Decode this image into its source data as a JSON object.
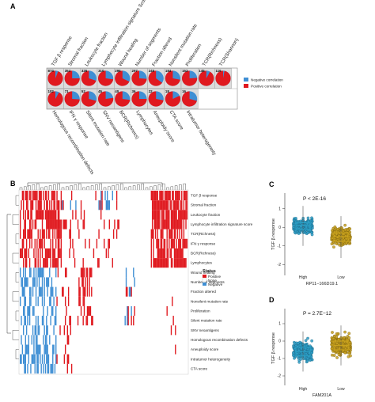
{
  "panel_labels": [
    "A",
    "B",
    "C",
    "D"
  ],
  "panelA": {
    "top_row_labels": [
      "TGF β response",
      "Stromal fraction",
      "Leukocyte fraction",
      "Lymphocyte infiltration signature Score",
      "Wound healing",
      "Number of segments",
      "Fraction altered",
      "Nonsilent mutation rate",
      "Proliferation",
      "TCR(Richness)",
      "TCR(Shannon)"
    ],
    "bottom_row_labels": [
      "Homologous recombination defects",
      "IFN γ response",
      "Silent mutation rate",
      "SNV neoantigens",
      "BCR(Richness)",
      "Lymphocytes",
      "Aneuploidy score",
      "CTA score",
      "Intratumor heterogeneity"
    ],
    "top_counts": [
      "874",
      "354",
      "326",
      "310",
      "296",
      "297",
      "245",
      "184",
      "152",
      "145",
      "116"
    ],
    "bottom_counts": [
      "102",
      "71",
      "52",
      "45",
      "40",
      "36",
      "22",
      "18",
      "16",
      "",
      ""
    ],
    "legend": {
      "negative": "Negative correlation",
      "positive": "Positive correlation"
    },
    "colors": {
      "negative": "#3f8fd4",
      "positive": "#e0191f"
    },
    "top_positive_fraction": [
      0.94,
      0.75,
      0.7,
      0.73,
      0.68,
      0.74,
      0.65,
      0.72,
      0.76,
      0.92,
      0.97
    ],
    "bottom_positive_fraction": [
      0.92,
      0.74,
      0.71,
      0.77,
      0.73,
      0.75,
      0.72,
      0.82,
      0.71
    ]
  },
  "panelB": {
    "row_labels": [
      "TGF β response",
      "Stromal fraction",
      "Leukocyte fraction",
      "Lymphocyte infiltration signature score",
      "TCR(Richness)",
      "IFN γ response",
      "BCR(Richness)",
      "Lymphocytes",
      "Wound healing",
      "Number of segments",
      "Fraction altered",
      "Nonsilent mutation rate",
      "Proliferation",
      "Silent mutation rate",
      "SNV neoantigens",
      "Homologous recombination defects",
      "Aneuploidy score",
      "Intratumor heterogeneity",
      "CTA score"
    ],
    "legend_title": "Status",
    "legend_items": [
      "Positive",
      "None",
      "Negative"
    ],
    "colors": {
      "positive": "#e0191f",
      "none": "#ffffff",
      "negative": "#3f8fd4"
    }
  },
  "panelC": {
    "p_value": "P < 2E-16",
    "ylabel": "TGF β response",
    "xlabel": "RP11−166D19.1",
    "categories": [
      "High",
      "Low"
    ],
    "yticks": [
      "-2",
      "-1",
      "0",
      "1"
    ],
    "box_colors": [
      "#2a9fc4",
      "#c9a21c"
    ]
  },
  "panelD": {
    "p_value": "P = 2.7E−12",
    "ylabel": "TGF β response",
    "xlabel": "FAM201A",
    "categories": [
      "High",
      "Low"
    ],
    "yticks": [
      "-2",
      "-1",
      "0",
      "1"
    ],
    "box_colors": [
      "#2a9fc4",
      "#c9a21c"
    ]
  },
  "chart_data": [
    {
      "type": "scatter",
      "title": "P < 2E-16",
      "xlabel": "RP11−166D19.1",
      "ylabel": "TGF β response",
      "categories": [
        "High",
        "Low"
      ],
      "ylim": [
        -2.5,
        1.5
      ],
      "series": [
        {
          "name": "High",
          "median": 0.1,
          "q1": -0.1,
          "q3": 0.25
        },
        {
          "name": "Low",
          "median": -0.5,
          "q1": -0.75,
          "q3": -0.3
        }
      ]
    },
    {
      "type": "scatter",
      "title": "P = 2.7E−12",
      "xlabel": "FAM201A",
      "ylabel": "TGF β response",
      "categories": [
        "High",
        "Low"
      ],
      "ylim": [
        -2.5,
        1.5
      ],
      "series": [
        {
          "name": "High",
          "median": -0.6,
          "q1": -0.85,
          "q3": -0.35
        },
        {
          "name": "Low",
          "median": -0.25,
          "q1": -0.5,
          "q3": 0.0
        }
      ]
    }
  ]
}
